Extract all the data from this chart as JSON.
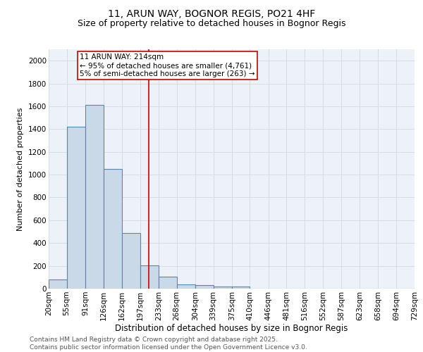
{
  "title1": "11, ARUN WAY, BOGNOR REGIS, PO21 4HF",
  "title2": "Size of property relative to detached houses in Bognor Regis",
  "xlabel": "Distribution of detached houses by size in Bognor Regis",
  "ylabel": "Number of detached properties",
  "bin_edges": [
    20,
    55,
    91,
    126,
    162,
    197,
    233,
    268,
    304,
    339,
    375,
    410,
    446,
    481,
    516,
    552,
    587,
    623,
    658,
    694,
    729
  ],
  "bar_heights": [
    80,
    1420,
    1610,
    1050,
    490,
    205,
    105,
    40,
    30,
    20,
    20,
    0,
    0,
    0,
    0,
    0,
    0,
    0,
    0,
    0
  ],
  "bar_color": "#c9d9e8",
  "bar_edge_color": "#5588aa",
  "bar_edge_width": 0.8,
  "red_line_x": 214,
  "annotation_text": "11 ARUN WAY: 214sqm\n← 95% of detached houses are smaller (4,761)\n5% of semi-detached houses are larger (263) →",
  "annotation_box_color": "white",
  "annotation_box_edge_color": "#cc0000",
  "ylim": [
    0,
    2100
  ],
  "yticks": [
    0,
    200,
    400,
    600,
    800,
    1000,
    1200,
    1400,
    1600,
    1800,
    2000
  ],
  "grid_color": "#d0d8e4",
  "background_color": "#edf2f8",
  "footer_text": "Contains HM Land Registry data © Crown copyright and database right 2025.\nContains public sector information licensed under the Open Government Licence v3.0.",
  "title1_fontsize": 10,
  "title2_fontsize": 9,
  "xlabel_fontsize": 8.5,
  "ylabel_fontsize": 8,
  "tick_fontsize": 7.5,
  "annotation_fontsize": 7.5,
  "footer_fontsize": 6.5
}
